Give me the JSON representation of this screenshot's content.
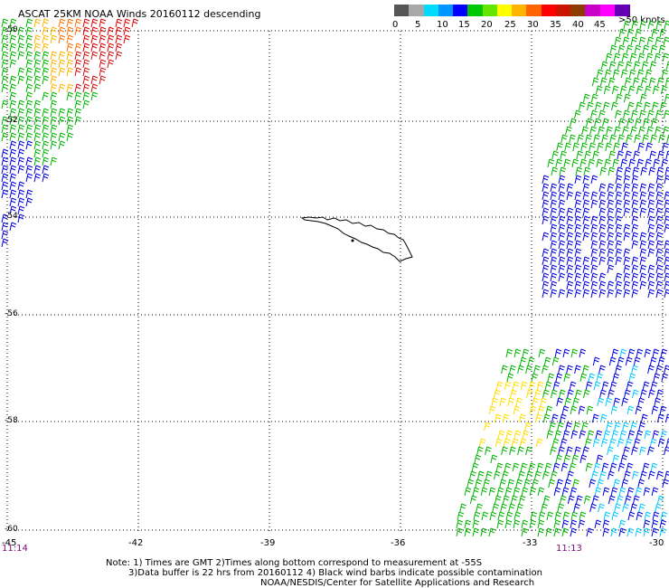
{
  "title": "ASCAT 25KM NOAA Winds 20160112 descending",
  "legend": {
    "units": ">50 knots",
    "colors": [
      "#555555",
      "#a8a8a8",
      "#00dcff",
      "#0096ff",
      "#0000ff",
      "#00c800",
      "#64e600",
      "#ffff00",
      "#ffb400",
      "#ff6400",
      "#ff0000",
      "#c81400",
      "#8c3c00",
      "#c800c8",
      "#ff00ff",
      "#6400b4"
    ],
    "ticks": [
      "0",
      "5",
      "10",
      "15",
      "20",
      "25",
      "30",
      "35",
      "40",
      "45"
    ]
  },
  "map": {
    "lat_labels": [
      "-50",
      "-52",
      "-54",
      "-56",
      "-58",
      "-60"
    ],
    "lon_labels": [
      "-45",
      "-42",
      "-39",
      "-36",
      "-33",
      "-30"
    ],
    "time_labels": [
      "11:14",
      "11:13"
    ],
    "swaths": [
      {
        "region": "northwest",
        "wind_speed_knots": "15-40"
      },
      {
        "region": "east",
        "wind_speed_knots": "10-25"
      },
      {
        "region": "southeast",
        "wind_speed_knots": "5-25"
      }
    ],
    "landmass": "South Georgia"
  },
  "notes": [
    "Note: 1) Times are GMT 2)Times along bottom correspond to measurement at -55S",
    "3)Data buffer is 22 hrs from 20160112 4) Black wind barbs indicate possible contamination",
    "NOAA/NESDIS/Center for Satellite Applications and Research"
  ]
}
